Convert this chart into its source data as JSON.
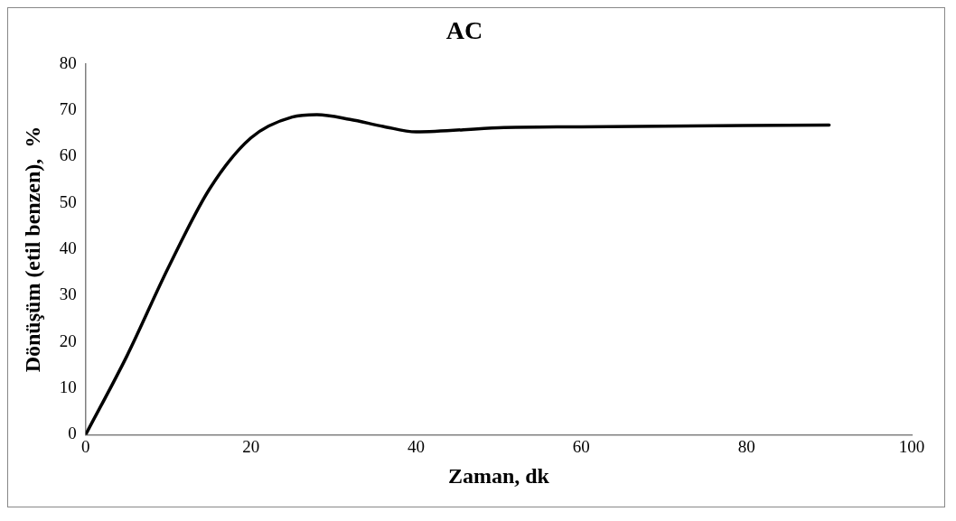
{
  "chart_data": {
    "type": "line",
    "title": "AC",
    "xlabel": "Zaman, dk",
    "ylabel": "Dönüşüm (etil benzen),  %",
    "series": [
      {
        "color": "#000000",
        "x": [
          0,
          5,
          10,
          15,
          20,
          25,
          28,
          32,
          36,
          40,
          50,
          60,
          90
        ],
        "values": [
          0,
          17,
          36,
          53,
          64,
          68.5,
          69,
          68,
          66.5,
          65.3,
          66.2,
          66.4,
          66.8
        ]
      }
    ],
    "xlim": [
      0,
      100
    ],
    "xticks": [
      0,
      20,
      40,
      60,
      80,
      100
    ],
    "ylim": [
      0,
      80
    ],
    "yticks": [
      0,
      10,
      20,
      30,
      40,
      50,
      60,
      70,
      80
    ],
    "grid": false,
    "legend": false,
    "marker": "none",
    "line_style": "solid"
  }
}
